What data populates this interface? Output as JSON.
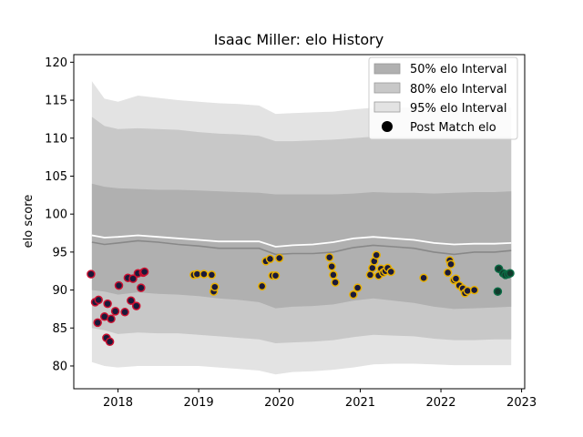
{
  "chart_data": {
    "type": "scatter",
    "title": "Isaac Miller: elo History",
    "xlabel": "",
    "ylabel": "elo score",
    "xlim": [
      "2017-06-15",
      "2023-01-15"
    ],
    "ylim": [
      77,
      121
    ],
    "x_ticks": [
      "2018",
      "2019",
      "2020",
      "2021",
      "2022",
      "2023"
    ],
    "x_tick_dates": [
      "2018-01-01",
      "2019-01-01",
      "2020-01-01",
      "2021-01-01",
      "2022-01-01",
      "2023-01-01"
    ],
    "y_ticks": [
      80,
      85,
      90,
      95,
      100,
      105,
      110,
      115,
      120
    ],
    "legend": {
      "placement": "top-right",
      "entries": [
        "50% elo Interval",
        "80% elo Interval",
        "95% elo Interval",
        "Post Match elo"
      ]
    },
    "colors": {
      "band_50": "#b0b0b0",
      "band_80": "#c8c8c8",
      "band_95": "#e3e3e3",
      "median_line": "#888888",
      "mean_line": "#ffffff",
      "point_fill": "#1a1a3a",
      "edge_2017_2018": "#cc1030",
      "edge_2019_2022": "#e8b000",
      "edge_late_2022": "#0b6b45"
    },
    "bands": {
      "dates": [
        "2017-09-05",
        "2017-11-01",
        "2018-01-01",
        "2018-04-01",
        "2018-07-01",
        "2018-10-01",
        "2019-01-01",
        "2019-04-01",
        "2019-07-01",
        "2019-10-01",
        "2019-12-15",
        "2020-03-01",
        "2020-06-01",
        "2020-09-01",
        "2020-12-01",
        "2021-03-01",
        "2021-06-01",
        "2021-09-01",
        "2021-12-01",
        "2022-03-01",
        "2022-06-01",
        "2022-09-01",
        "2022-11-15"
      ],
      "p95_upper": [
        117.5,
        115.2,
        114.8,
        115.6,
        115.3,
        115.0,
        114.8,
        114.6,
        114.5,
        114.3,
        113.2,
        113.3,
        113.4,
        113.5,
        113.8,
        114.0,
        114.0,
        114.0,
        114.0,
        114.0,
        114.0,
        114.0,
        114.0
      ],
      "p80_upper": [
        112.8,
        111.6,
        111.2,
        111.3,
        111.2,
        111.1,
        110.8,
        110.6,
        110.5,
        110.3,
        109.6,
        109.6,
        109.7,
        109.8,
        110.0,
        110.2,
        110.2,
        110.2,
        110.2,
        110.2,
        110.2,
        110.2,
        110.2
      ],
      "p50_upper": [
        104.0,
        103.6,
        103.4,
        103.3,
        103.2,
        103.2,
        103.1,
        103.0,
        102.9,
        102.8,
        102.6,
        102.6,
        102.6,
        102.6,
        102.7,
        102.9,
        102.8,
        102.8,
        102.7,
        102.8,
        102.9,
        102.9,
        103.0
      ],
      "median": [
        96.3,
        96.0,
        96.2,
        96.5,
        96.3,
        96.0,
        95.8,
        95.5,
        95.5,
        95.5,
        94.7,
        94.8,
        94.8,
        95.0,
        95.6,
        95.9,
        95.7,
        95.5,
        95.0,
        94.7,
        95.0,
        95.0,
        95.2
      ],
      "mean": [
        97.2,
        96.9,
        97.0,
        97.2,
        97.0,
        96.8,
        96.6,
        96.4,
        96.4,
        96.4,
        95.7,
        95.9,
        96.0,
        96.3,
        96.8,
        97.0,
        96.8,
        96.6,
        96.2,
        96.0,
        96.1,
        96.1,
        96.2
      ],
      "p50_lower": [
        90.0,
        89.8,
        89.4,
        89.7,
        89.5,
        89.4,
        89.2,
        88.9,
        88.7,
        88.4,
        87.6,
        87.8,
        87.9,
        88.1,
        88.6,
        88.9,
        88.6,
        88.3,
        87.8,
        87.5,
        87.6,
        87.7,
        87.8
      ],
      "p80_lower": [
        85.0,
        84.7,
        84.2,
        84.4,
        84.3,
        84.3,
        84.1,
        83.9,
        83.7,
        83.5,
        83.0,
        83.1,
        83.2,
        83.4,
        83.8,
        84.1,
        84.0,
        83.9,
        83.6,
        83.4,
        83.4,
        83.5,
        83.5
      ],
      "p95_lower": [
        80.5,
        80.0,
        79.8,
        80.0,
        80.0,
        80.0,
        80.0,
        79.8,
        79.6,
        79.4,
        78.9,
        79.2,
        79.3,
        79.5,
        79.8,
        80.2,
        80.3,
        80.3,
        80.2,
        80.1,
        80.1,
        80.1,
        80.1
      ]
    },
    "series": [
      {
        "values": [
          [
            "2017-09-01",
            92.1
          ],
          [
            "2017-09-20",
            88.4
          ],
          [
            "2017-10-05",
            88.7
          ],
          [
            "2017-10-01",
            85.7
          ],
          [
            "2017-11-01",
            86.5
          ],
          [
            "2017-11-10",
            83.7
          ],
          [
            "2017-11-25",
            83.2
          ],
          [
            "2017-11-15",
            88.2
          ],
          [
            "2017-12-01",
            86.2
          ],
          [
            "2017-12-20",
            87.2
          ],
          [
            "2018-01-05",
            90.6
          ],
          [
            "2018-02-01",
            87.1
          ],
          [
            "2018-02-15",
            91.6
          ],
          [
            "2018-03-01",
            88.6
          ],
          [
            "2018-03-10",
            91.5
          ],
          [
            "2018-03-25",
            87.9
          ],
          [
            "2018-04-01",
            92.2
          ],
          [
            "2018-04-15",
            90.3
          ],
          [
            "2018-04-25",
            92.3
          ],
          [
            "2018-05-01",
            92.4
          ]
        ]
      },
      {
        "values": [
          [
            "2018-12-10",
            92.0
          ],
          [
            "2018-12-25",
            92.1
          ],
          [
            "2019-01-25",
            92.1
          ],
          [
            "2019-03-01",
            92.0
          ],
          [
            "2019-03-10",
            89.8
          ],
          [
            "2019-03-15",
            90.4
          ],
          [
            "2019-10-15",
            90.5
          ],
          [
            "2019-11-01",
            93.8
          ],
          [
            "2019-11-20",
            94.1
          ],
          [
            "2019-12-01",
            91.9
          ],
          [
            "2019-12-15",
            91.9
          ],
          [
            "2020-01-01",
            94.2
          ],
          [
            "2020-08-15",
            94.3
          ],
          [
            "2020-08-25",
            93.1
          ],
          [
            "2020-09-01",
            92.0
          ],
          [
            "2020-09-10",
            91.0
          ],
          [
            "2020-12-01",
            89.4
          ],
          [
            "2020-12-20",
            90.3
          ],
          [
            "2021-02-15",
            92.0
          ],
          [
            "2021-02-25",
            92.9
          ],
          [
            "2021-03-05",
            93.8
          ],
          [
            "2021-03-15",
            94.6
          ],
          [
            "2021-03-25",
            91.9
          ],
          [
            "2021-04-05",
            92.8
          ],
          [
            "2021-04-15",
            92.3
          ],
          [
            "2021-04-25",
            92.5
          ],
          [
            "2021-05-05",
            92.9
          ],
          [
            "2021-05-20",
            92.4
          ],
          [
            "2021-10-15",
            91.6
          ],
          [
            "2022-02-01",
            92.3
          ],
          [
            "2022-02-10",
            93.9
          ],
          [
            "2022-02-15",
            93.4
          ],
          [
            "2022-03-01",
            91.3
          ],
          [
            "2022-03-10",
            91.5
          ],
          [
            "2022-03-25",
            90.6
          ],
          [
            "2022-04-10",
            90.2
          ],
          [
            "2022-04-20",
            89.6
          ],
          [
            "2022-05-01",
            89.9
          ],
          [
            "2022-06-01",
            90.0
          ]
        ]
      },
      {
        "values": [
          [
            "2022-09-15",
            89.8
          ],
          [
            "2022-09-20",
            92.8
          ],
          [
            "2022-10-10",
            92.2
          ],
          [
            "2022-10-20",
            92.0
          ],
          [
            "2022-11-01",
            92.1
          ],
          [
            "2022-11-10",
            92.2
          ]
        ]
      }
    ]
  }
}
